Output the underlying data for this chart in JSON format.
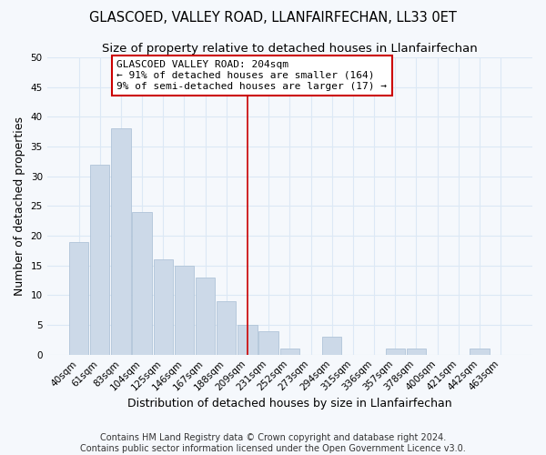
{
  "title": "GLASCOED, VALLEY ROAD, LLANFAIRFECHAN, LL33 0ET",
  "subtitle": "Size of property relative to detached houses in Llanfairfechan",
  "xlabel": "Distribution of detached houses by size in Llanfairfechan",
  "ylabel": "Number of detached properties",
  "categories": [
    "40sqm",
    "61sqm",
    "83sqm",
    "104sqm",
    "125sqm",
    "146sqm",
    "167sqm",
    "188sqm",
    "209sqm",
    "231sqm",
    "252sqm",
    "273sqm",
    "294sqm",
    "315sqm",
    "336sqm",
    "357sqm",
    "378sqm",
    "400sqm",
    "421sqm",
    "442sqm",
    "463sqm"
  ],
  "values": [
    19,
    32,
    38,
    24,
    16,
    15,
    13,
    9,
    5,
    4,
    1,
    0,
    3,
    0,
    0,
    1,
    1,
    0,
    0,
    1,
    0
  ],
  "bar_color": "#ccd9e8",
  "bar_edge_color": "#b0c4d8",
  "vline_x_index": 8,
  "vline_color": "#cc0000",
  "annotation_title": "GLASCOED VALLEY ROAD: 204sqm",
  "annotation_line1": "← 91% of detached houses are smaller (164)",
  "annotation_line2": "9% of semi-detached houses are larger (17) →",
  "annotation_box_color": "#cc0000",
  "footer": "Contains HM Land Registry data © Crown copyright and database right 2024.\nContains public sector information licensed under the Open Government Licence v3.0.",
  "ylim": [
    0,
    50
  ],
  "yticks": [
    0,
    5,
    10,
    15,
    20,
    25,
    30,
    35,
    40,
    45,
    50
  ],
  "background_color": "#f5f8fc",
  "grid_color": "#dce8f5",
  "title_fontsize": 10.5,
  "subtitle_fontsize": 9.5,
  "axis_label_fontsize": 9,
  "tick_fontsize": 7.5,
  "annotation_fontsize": 8,
  "footer_fontsize": 7
}
